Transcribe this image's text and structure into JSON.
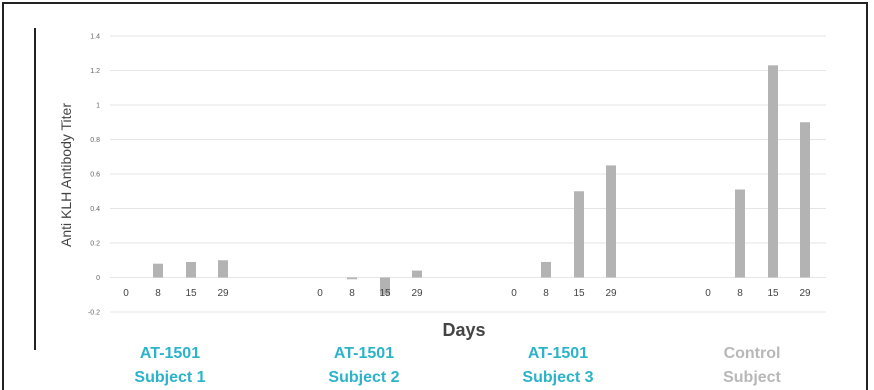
{
  "chart_data": {
    "type": "bar",
    "title": "",
    "xlabel": "Days",
    "ylabel": "Anti KLH Antibody Titer",
    "ylim": [
      -0.2,
      1.4
    ],
    "yticks": [
      "-0.2",
      "0",
      "0.2",
      "0.4",
      "0.6",
      "0.8",
      "1",
      "1.2",
      "1.4"
    ],
    "grid": true,
    "colors": {
      "bar": "#b3b3b3",
      "grid": "#e6e6e6",
      "active_label": "#2bb3c9",
      "control_label": "#b8b8b8",
      "axis_line": "#222222"
    },
    "groups": [
      {
        "line1": "AT-1501",
        "line2": "Subject 1",
        "style": "active",
        "days": [
          "0",
          "8",
          "15",
          "29"
        ],
        "values": [
          0,
          0.08,
          0.09,
          0.1
        ]
      },
      {
        "line1": "AT-1501",
        "line2": "Subject 2",
        "style": "active",
        "days": [
          "0",
          "8",
          "15",
          "29"
        ],
        "values": [
          0,
          -0.01,
          -0.1,
          0.04
        ]
      },
      {
        "line1": "AT-1501",
        "line2": "Subject 3",
        "style": "active",
        "days": [
          "0",
          "8",
          "15",
          "29"
        ],
        "values": [
          0,
          0.09,
          0.5,
          0.65
        ]
      },
      {
        "line1": "Control",
        "line2": "Subject",
        "style": "control",
        "days": [
          "0",
          "8",
          "15",
          "29"
        ],
        "values": [
          0,
          0.51,
          1.23,
          0.9
        ]
      }
    ]
  }
}
